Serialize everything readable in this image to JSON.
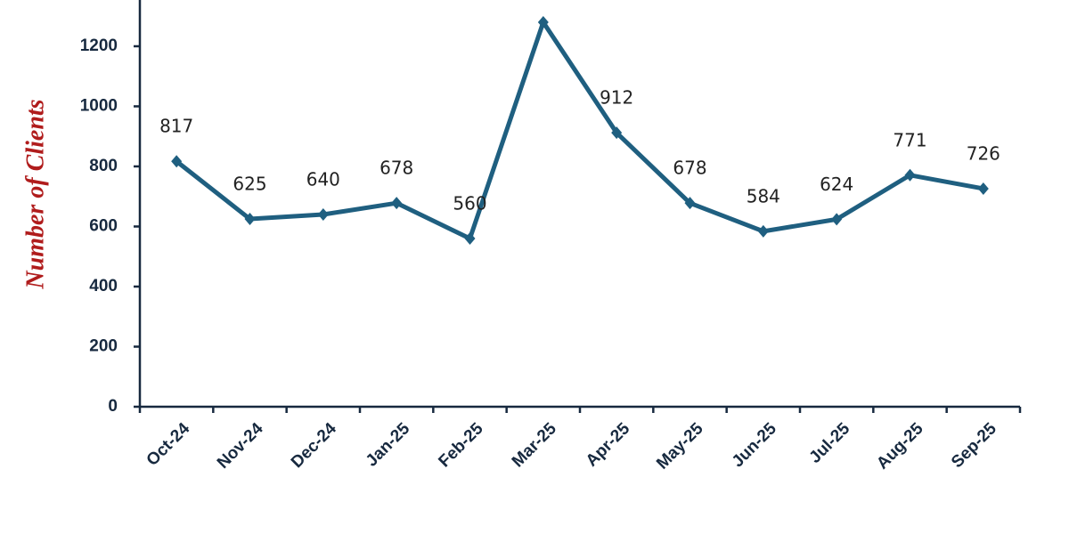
{
  "chart_data": {
    "type": "line",
    "y_label": "Number of Clients",
    "categories": [
      "Oct-24",
      "Nov-24",
      "Dec-24",
      "Jan-25",
      "Feb-25",
      "Mar-25",
      "Apr-25",
      "May-25",
      "Jun-25",
      "Jul-25",
      "Aug-25",
      "Sep-25"
    ],
    "values": [
      817,
      625,
      640,
      678,
      560,
      1280,
      912,
      678,
      584,
      624,
      771,
      726
    ],
    "value_labels": [
      "817",
      "625",
      "640",
      "678",
      "560",
      null,
      "912",
      "678",
      "584",
      "624",
      "771",
      "726"
    ],
    "color": "#1f5f80",
    "ylim": [
      0,
      1354
    ],
    "yticks": [
      0,
      200,
      400,
      600,
      800,
      1000,
      1200
    ],
    "grid": false
  }
}
